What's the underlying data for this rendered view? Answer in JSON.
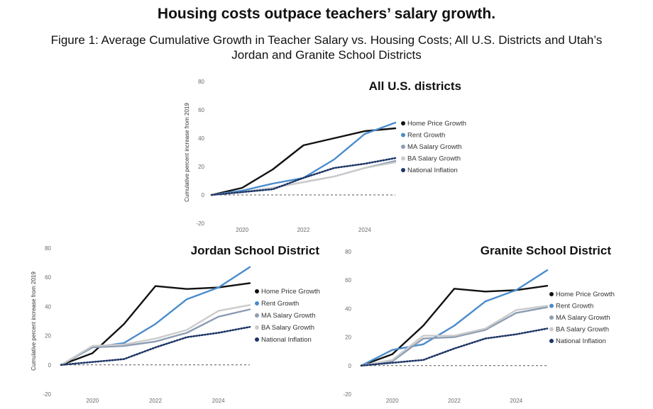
{
  "header": {
    "title": "Housing costs outpace teachers’ salary growth.",
    "subtitle": "Figure 1: Average Cumulative Growth in Teacher Salary vs. Housing Costs; All U.S. Districts and Utah’s Jordan and Granite School Districts"
  },
  "chart_data": [
    {
      "type": "line",
      "title": "All U.S. districts",
      "ylabel": "Cumulative percent increase from 2019",
      "xlabel": "",
      "x": [
        2019,
        2020,
        2021,
        2022,
        2023,
        2024,
        2025
      ],
      "x_ticks": [
        2020,
        2022,
        2024
      ],
      "y_ticks": [
        -20,
        0,
        20,
        40,
        60,
        80
      ],
      "ylim": [
        -20,
        80
      ],
      "xlim": [
        2019,
        2025
      ],
      "grid": false,
      "legend": "right",
      "reference_line": {
        "y": 0,
        "style": "dashed"
      },
      "series": [
        {
          "name": "Home Price Growth",
          "color": "#111111",
          "style": "solid",
          "values": [
            0,
            5,
            18,
            35,
            40,
            45,
            47
          ]
        },
        {
          "name": "Rent Growth",
          "color": "#4a8ccc",
          "style": "solid",
          "values": [
            0,
            3,
            8,
            12,
            25,
            43,
            51
          ]
        },
        {
          "name": "MA Salary Growth",
          "color": "#8c9cb3",
          "style": "solid",
          "values": [
            0,
            2,
            5,
            9,
            13,
            19,
            24
          ]
        },
        {
          "name": "BA Salary Growth",
          "color": "#cbcbcb",
          "style": "solid",
          "values": [
            0,
            2,
            5,
            9,
            13,
            19,
            23
          ]
        },
        {
          "name": "National Inflation",
          "color": "#1c3466",
          "style": "dotted",
          "values": [
            0,
            2,
            4,
            12,
            19,
            22,
            26
          ]
        }
      ]
    },
    {
      "type": "line",
      "title": "Jordan School District",
      "ylabel": "Cumulative percent increase from 2019",
      "xlabel": "",
      "x": [
        2019,
        2020,
        2021,
        2022,
        2023,
        2024,
        2025
      ],
      "x_ticks": [
        2020,
        2022,
        2024
      ],
      "y_ticks": [
        -20,
        0,
        20,
        40,
        60,
        80
      ],
      "ylim": [
        -20,
        80
      ],
      "xlim": [
        2019,
        2025
      ],
      "grid": false,
      "legend": "right",
      "reference_line": {
        "y": 0,
        "style": "dashed"
      },
      "series": [
        {
          "name": "Home Price Growth",
          "color": "#111111",
          "style": "solid",
          "values": [
            0,
            8,
            28,
            54,
            52,
            53,
            56
          ]
        },
        {
          "name": "Rent Growth",
          "color": "#4a8ccc",
          "style": "solid",
          "values": [
            0,
            12,
            15,
            28,
            45,
            53,
            67
          ]
        },
        {
          "name": "MA Salary Growth",
          "color": "#8c9cb3",
          "style": "solid",
          "values": [
            0,
            12,
            13,
            16,
            22,
            33,
            38
          ]
        },
        {
          "name": "BA Salary Growth",
          "color": "#cbcbcb",
          "style": "solid",
          "values": [
            0,
            13,
            14,
            18,
            24,
            37,
            41
          ]
        },
        {
          "name": "National Inflation",
          "color": "#1c3466",
          "style": "dotted",
          "values": [
            0,
            2,
            4,
            12,
            19,
            22,
            26
          ]
        }
      ]
    },
    {
      "type": "line",
      "title": "Granite School District",
      "ylabel": "",
      "xlabel": "",
      "x": [
        2019,
        2020,
        2021,
        2022,
        2023,
        2024,
        2025
      ],
      "x_ticks": [
        2020,
        2022,
        2024
      ],
      "y_ticks": [
        -20,
        0,
        20,
        40,
        60,
        80
      ],
      "ylim": [
        -20,
        80
      ],
      "xlim": [
        2019,
        2025
      ],
      "grid": false,
      "legend": "right",
      "reference_line": {
        "y": 0,
        "style": "dashed"
      },
      "series": [
        {
          "name": "Home Price Growth",
          "color": "#111111",
          "style": "solid",
          "values": [
            0,
            8,
            28,
            54,
            52,
            53,
            56
          ]
        },
        {
          "name": "Rent Growth",
          "color": "#4a8ccc",
          "style": "solid",
          "values": [
            0,
            11,
            15,
            28,
            45,
            53,
            67
          ]
        },
        {
          "name": "MA Salary Growth",
          "color": "#8c9cb3",
          "style": "solid",
          "values": [
            0,
            3,
            19,
            20,
            25,
            37,
            41
          ]
        },
        {
          "name": "BA Salary Growth",
          "color": "#cbcbcb",
          "style": "solid",
          "values": [
            0,
            4,
            21,
            21,
            26,
            39,
            42
          ]
        },
        {
          "name": "National Inflation",
          "color": "#1c3466",
          "style": "dotted",
          "values": [
            0,
            2,
            4,
            12,
            19,
            22,
            26
          ]
        }
      ]
    }
  ]
}
